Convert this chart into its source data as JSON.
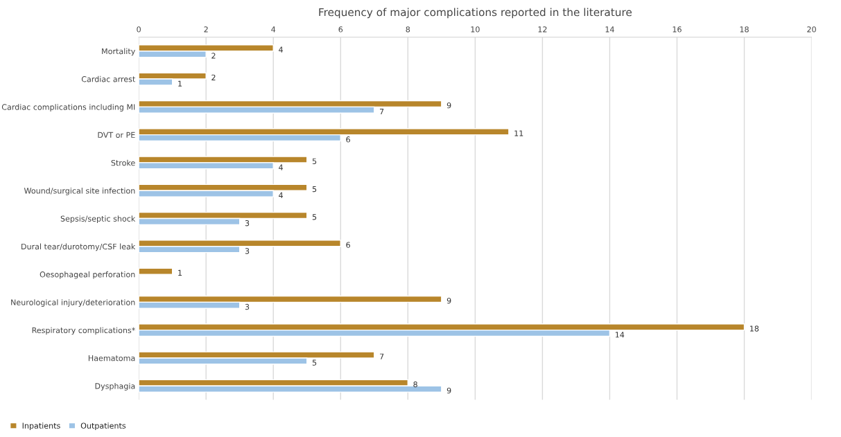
{
  "chart_data": {
    "type": "bar",
    "orientation": "horizontal",
    "title": "Frequency of major complications reported in the literature",
    "categories": [
      "Mortality",
      "Cardiac arrest",
      "Cardiac complications including MI",
      "DVT or PE",
      "Stroke",
      "Wound/surgical site infection",
      "Sepsis/septic shock",
      "Dural tear/durotomy/CSF leak",
      "Oesophageal perforation",
      "Neurological injury/deterioration",
      "Respiratory complications*",
      "Haematoma",
      "Dysphagia"
    ],
    "series": [
      {
        "name": "Inpatients",
        "color": "#b8862b",
        "values": [
          4,
          2,
          9,
          11,
          5,
          5,
          5,
          6,
          1,
          9,
          18,
          7,
          8
        ]
      },
      {
        "name": "Outpatients",
        "color": "#9dc3e6",
        "values": [
          2,
          1,
          7,
          6,
          4,
          4,
          3,
          3,
          null,
          3,
          14,
          5,
          9
        ]
      }
    ],
    "xlim": [
      0,
      20
    ],
    "xticks": [
      0,
      2,
      4,
      6,
      8,
      10,
      12,
      14,
      16,
      18,
      20
    ],
    "grid": "x",
    "legend": "bottom left",
    "data_labels": true
  }
}
